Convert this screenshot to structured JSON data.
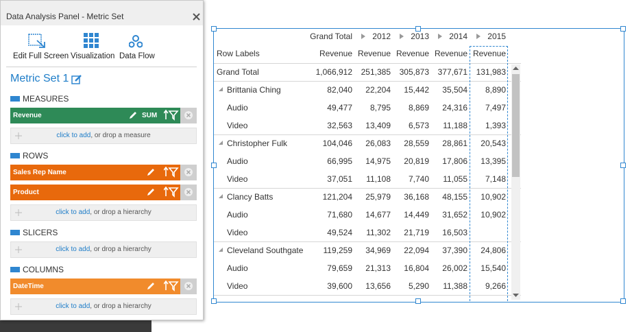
{
  "panel": {
    "title": "Data Analysis Panel - Metric Set",
    "toolbar": [
      "Edit Full Screen",
      "Visualization",
      "Data Flow"
    ],
    "metric_set": "Metric Set 1",
    "sections": [
      {
        "heading": "MEASURES",
        "color": "#2e8a57",
        "fields": [
          {
            "name": "Revenue",
            "aggregation": "SUM"
          }
        ],
        "drop_link": "click to add",
        "drop_text": ", or drop a measure"
      },
      {
        "heading": "ROWS",
        "color": "#e8690c",
        "fields": [
          {
            "name": "Sales Rep Name"
          },
          {
            "name": "Product"
          }
        ],
        "drop_link": "click to add",
        "drop_text": ", or drop a hierarchy"
      },
      {
        "heading": "SLICERS",
        "color": "#e8690c",
        "fields": [],
        "drop_link": "click to add",
        "drop_text": ", or drop a hierarchy"
      },
      {
        "heading": "COLUMNS",
        "color": "#f18b2c",
        "fields": [
          {
            "name": "DateTime"
          }
        ],
        "drop_link": "click to add",
        "drop_text": ", or drop a hierarchy"
      }
    ]
  },
  "pivot": {
    "column_headers": [
      "Grand Total",
      "2012",
      "2013",
      "2014",
      "2015"
    ],
    "row_labels_header": "Row Labels",
    "measure_headers": [
      "Revenue",
      "Revenue",
      "Revenue",
      "Revenue",
      "Revenue"
    ],
    "rows": [
      {
        "label": "Grand Total",
        "level": 0,
        "values": [
          "1,066,912",
          "251,385",
          "305,873",
          "377,671",
          "131,983"
        ]
      },
      {
        "label": "Brittania Ching",
        "level": 1,
        "values": [
          "82,040",
          "22,204",
          "15,442",
          "35,504",
          "8,890"
        ]
      },
      {
        "label": "Audio",
        "level": 2,
        "values": [
          "49,477",
          "8,795",
          "8,869",
          "24,316",
          "7,497"
        ]
      },
      {
        "label": "Video",
        "level": 2,
        "values": [
          "32,563",
          "13,409",
          "6,573",
          "11,188",
          "1,393"
        ]
      },
      {
        "label": "Christopher Fulk",
        "level": 1,
        "values": [
          "104,046",
          "26,083",
          "28,559",
          "28,861",
          "20,543"
        ]
      },
      {
        "label": "Audio",
        "level": 2,
        "values": [
          "66,995",
          "14,975",
          "20,819",
          "17,806",
          "13,395"
        ]
      },
      {
        "label": "Video",
        "level": 2,
        "values": [
          "37,051",
          "11,108",
          "7,740",
          "11,055",
          "7,148"
        ]
      },
      {
        "label": "Clancy Batts",
        "level": 1,
        "values": [
          "121,204",
          "25,979",
          "36,168",
          "48,155",
          "10,902"
        ]
      },
      {
        "label": "Audio",
        "level": 2,
        "values": [
          "71,680",
          "14,677",
          "14,449",
          "31,652",
          "10,902"
        ]
      },
      {
        "label": "Video",
        "level": 2,
        "values": [
          "49,524",
          "11,302",
          "21,719",
          "16,503",
          null
        ]
      },
      {
        "label": "Cleveland Southgate",
        "level": 1,
        "values": [
          "119,259",
          "34,969",
          "22,094",
          "37,390",
          "24,806"
        ]
      },
      {
        "label": "Audio",
        "level": 2,
        "values": [
          "79,659",
          "21,313",
          "16,804",
          "26,002",
          "15,540"
        ]
      },
      {
        "label": "Video",
        "level": 2,
        "values": [
          "39,600",
          "13,656",
          "5,290",
          "11,388",
          "9,266"
        ]
      }
    ]
  }
}
